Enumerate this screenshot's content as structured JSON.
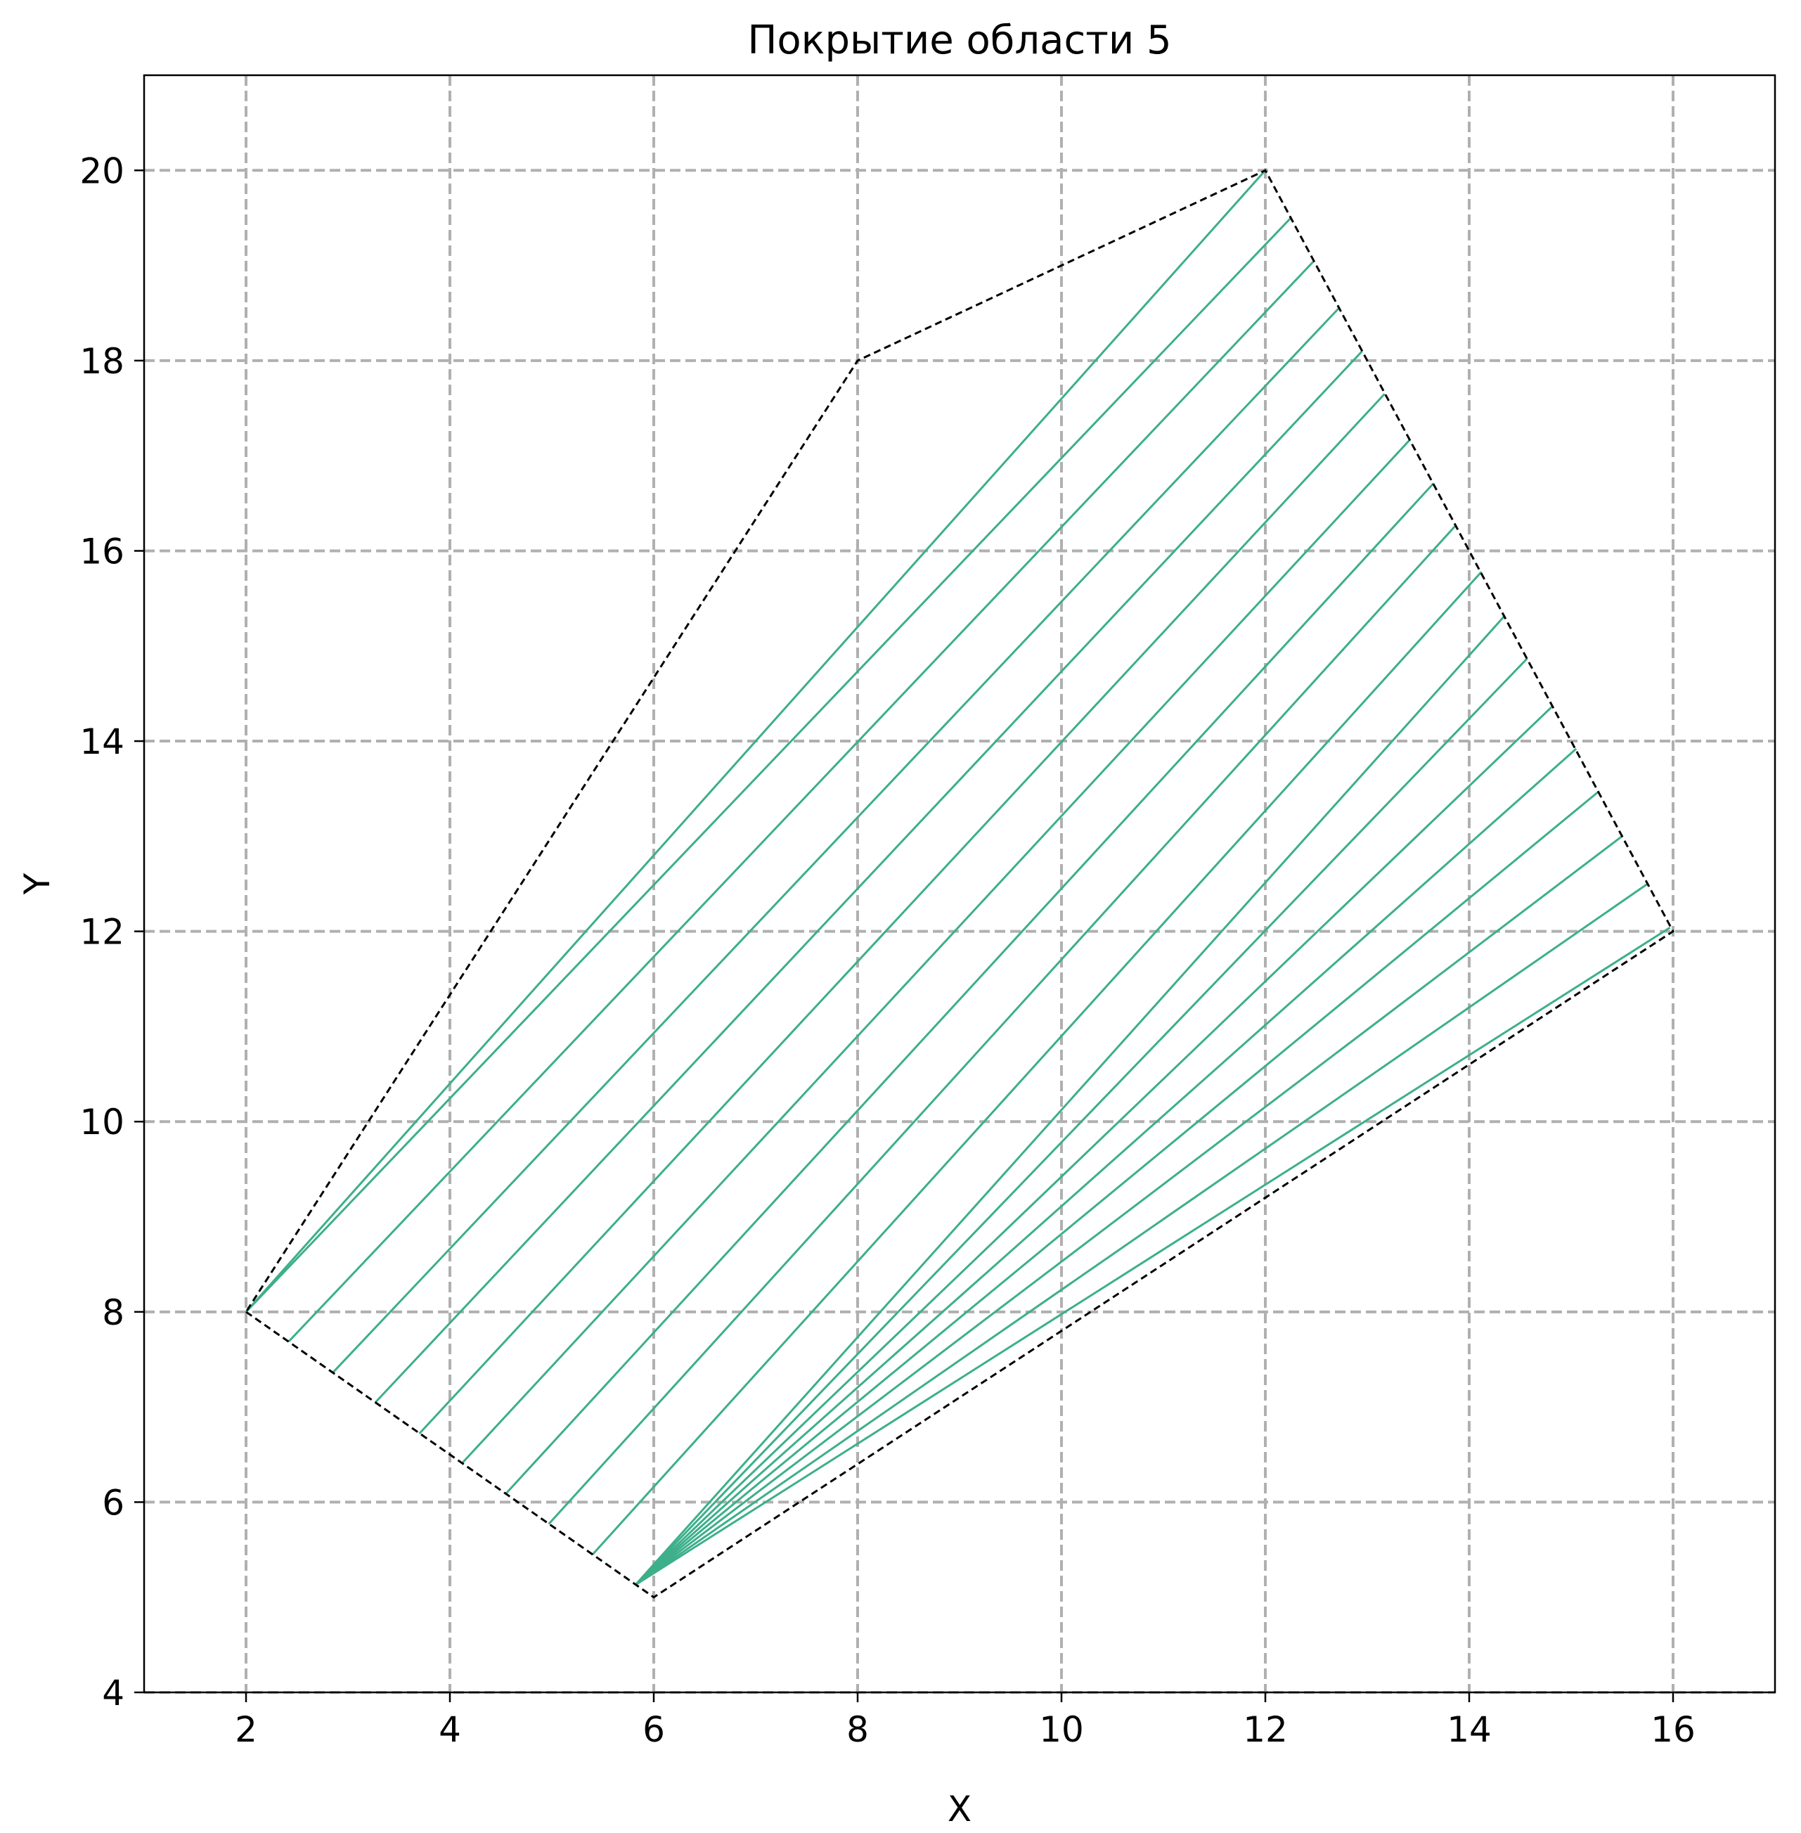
{
  "chart_data": {
    "type": "line",
    "title": "Покрытие области 5",
    "xlabel": "X",
    "ylabel": "Y",
    "xlim": [
      1,
      17
    ],
    "ylim": [
      4,
      21
    ],
    "xticks": [
      2,
      4,
      6,
      8,
      10,
      12,
      14,
      16
    ],
    "yticks": [
      4,
      6,
      8,
      10,
      12,
      14,
      16,
      18,
      20
    ],
    "grid": true,
    "boundary": {
      "style": "dashed",
      "color": "#000000",
      "points": [
        [
          2,
          8
        ],
        [
          6,
          5
        ],
        [
          16,
          12
        ],
        [
          12,
          20
        ],
        [
          8,
          18
        ],
        [
          2,
          8
        ]
      ]
    },
    "hatch": {
      "color": "#3daf8a",
      "segments": [
        [
          [
            2.0,
            8.0
          ],
          [
            12.0,
            20.0
          ]
        ],
        [
          [
            2.0,
            8.0
          ],
          [
            12.25,
            19.5
          ]
        ],
        [
          [
            2.42,
            7.69
          ],
          [
            12.47,
            19.04
          ]
        ],
        [
          [
            2.85,
            7.36
          ],
          [
            12.72,
            18.55
          ]
        ],
        [
          [
            3.27,
            7.05
          ],
          [
            12.95,
            18.1
          ]
        ],
        [
          [
            3.7,
            6.72
          ],
          [
            13.17,
            17.65
          ]
        ],
        [
          [
            4.12,
            6.41
          ],
          [
            13.42,
            17.17
          ]
        ],
        [
          [
            4.55,
            6.09
          ],
          [
            13.65,
            16.71
          ]
        ],
        [
          [
            4.97,
            5.77
          ],
          [
            13.87,
            16.27
          ]
        ],
        [
          [
            5.4,
            5.45
          ],
          [
            14.12,
            15.78
          ]
        ],
        [
          [
            5.82,
            5.13
          ],
          [
            14.35,
            15.32
          ]
        ],
        [
          [
            5.82,
            5.13
          ],
          [
            14.57,
            14.87
          ]
        ],
        [
          [
            5.82,
            5.13
          ],
          [
            14.82,
            14.37
          ]
        ],
        [
          [
            5.82,
            5.13
          ],
          [
            15.05,
            13.92
          ]
        ],
        [
          [
            5.82,
            5.13
          ],
          [
            15.27,
            13.47
          ]
        ],
        [
          [
            5.82,
            5.13
          ],
          [
            15.5,
            13.0
          ]
        ],
        [
          [
            5.82,
            5.13
          ],
          [
            15.75,
            12.5
          ]
        ],
        [
          [
            5.82,
            5.13
          ],
          [
            15.97,
            12.04
          ]
        ]
      ]
    }
  }
}
